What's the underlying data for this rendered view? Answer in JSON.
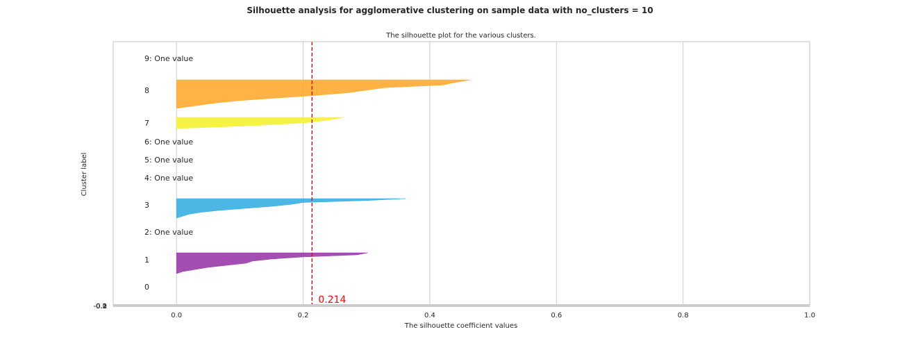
{
  "suptitle": "Silhouette analysis for agglomerative clustering on sample data with no_clusters = 10",
  "chart_data": {
    "type": "area",
    "title": "The silhouette plot for the various clusters.",
    "xlabel": "The silhouette coefficient values",
    "ylabel": "Cluster label",
    "xlim": [
      -0.1,
      1.0
    ],
    "xticks": [
      0.0,
      0.2,
      0.4,
      0.6,
      0.8,
      1.0
    ],
    "x_tick_labels": [
      "0.0",
      "0.2",
      "0.4",
      "0.6",
      "0.8",
      "1.0"
    ],
    "y_tick_labels_overlapping": [
      "-0.2",
      "-0.1",
      "0.0",
      "0.1",
      "0.2"
    ],
    "grid": true,
    "average_silhouette": 0.214,
    "average_label": "0.214",
    "clusters": [
      {
        "label": "0",
        "one_value": false,
        "color": "#ffffff",
        "profile": []
      },
      {
        "label": "1",
        "one_value": false,
        "color": "#9a3bab",
        "profile": [
          0.302,
          0.285,
          0.2,
          0.15,
          0.12,
          0.11,
          0.08,
          0.05,
          0.03,
          0.01,
          0.0
        ]
      },
      {
        "label": "2: One value",
        "one_value": true
      },
      {
        "label": "3",
        "one_value": false,
        "color": "#38aee2",
        "profile": [
          0.362,
          0.3,
          0.2,
          0.18,
          0.15,
          0.11,
          0.07,
          0.04,
          0.02,
          0.01,
          0.0
        ]
      },
      {
        "label": "4: One value",
        "one_value": true
      },
      {
        "label": "5: One value",
        "one_value": true
      },
      {
        "label": "6: One value",
        "one_value": true
      },
      {
        "label": "7",
        "one_value": false,
        "color": "#f5f231",
        "profile": [
          0.265,
          0.24,
          0.2,
          0.12,
          0.0
        ]
      },
      {
        "label": "8",
        "one_value": false,
        "color": "#ffab31",
        "profile": [
          0.465,
          0.44,
          0.42,
          0.33,
          0.3,
          0.27,
          0.22,
          0.16,
          0.1,
          0.06,
          0.03,
          0.0
        ]
      },
      {
        "label": "9: One value",
        "one_value": true
      }
    ]
  },
  "colors": {
    "average_line": "#ff0000",
    "grid": "#cccccc",
    "axis_frame": "#cccccc",
    "text": "#262626"
  }
}
